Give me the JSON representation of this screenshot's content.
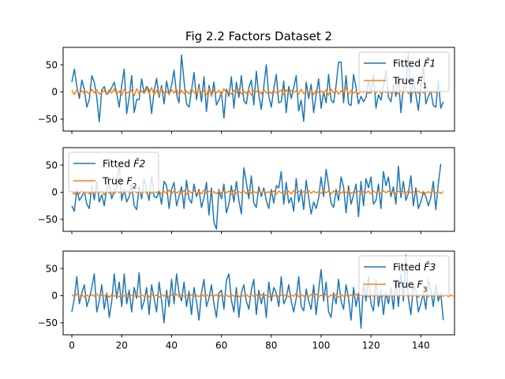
{
  "chart_data": {
    "type": "line",
    "title": "Fig 2.2 Factors Dataset 2",
    "xlim": [
      -3.5,
      153.5
    ],
    "x_ticks": [
      0,
      20,
      40,
      60,
      80,
      100,
      120,
      140
    ],
    "x_tick_labels": [
      "0",
      "20",
      "40",
      "60",
      "80",
      "100",
      "120",
      "140"
    ],
    "colors": {
      "fitted": "#1f77b4",
      "true": "#ff7f0e"
    },
    "panels": [
      {
        "ylim": [
          -72,
          82
        ],
        "y_ticks": [
          -50,
          0,
          50
        ],
        "y_tick_labels": [
          "−50",
          "0",
          "50"
        ],
        "legend_placement": "upper right",
        "legend": [
          {
            "label_plain": "Fitted ",
            "label_math": "F̂1"
          },
          {
            "label_plain": "True ",
            "label_math": "F",
            "label_sub": "1"
          }
        ],
        "series": [
          {
            "name": "Fitted F̂1",
            "values": [
              18,
              42,
              10,
              -12,
              22,
              5,
              -28,
              -14,
              30,
              18,
              -10,
              -55,
              4,
              10,
              -5,
              0,
              8,
              18,
              -3,
              -28,
              12,
              42,
              -40,
              -10,
              30,
              -38,
              -14,
              -14,
              24,
              -2,
              10,
              4,
              -40,
              2,
              25,
              -10,
              12,
              -22,
              20,
              -5,
              12,
              40,
              -5,
              -20,
              68,
              20,
              -22,
              -28,
              2,
              36,
              -14,
              14,
              -18,
              28,
              -36,
              12,
              -8,
              18,
              -24,
              -15,
              0,
              -48,
              5,
              -8,
              28,
              -30,
              18,
              -10,
              30,
              -16,
              -22,
              8,
              22,
              -24,
              38,
              -6,
              -32,
              10,
              50,
              -8,
              -28,
              6,
              32,
              -20,
              -18,
              20,
              -38,
              10,
              -12,
              8,
              30,
              -35,
              -15,
              -54,
              18,
              -12,
              14,
              -38,
              -5,
              24,
              -30,
              0,
              -20,
              32,
              -15,
              -20,
              12,
              55,
              55,
              -20,
              30,
              -22,
              -25,
              32,
              8,
              -22,
              -8,
              -18,
              -10,
              20,
              -2,
              32,
              -30,
              -5,
              -15,
              10,
              40,
              -10,
              -18,
              14,
              -8,
              28,
              -38,
              10,
              8,
              72,
              -20,
              28,
              -5,
              -34,
              12,
              48,
              -22,
              -8,
              2,
              -25,
              -28,
              20,
              -30,
              -18
            ]
          },
          {
            "name": "True F1",
            "values": [
              3,
              -5,
              4,
              -3,
              2,
              -3,
              1,
              -4,
              5,
              -2,
              4,
              -4,
              -1,
              3,
              -5,
              4,
              -2,
              6,
              -4,
              2,
              -6,
              5,
              -2,
              0,
              3,
              -7,
              6,
              -4,
              2,
              -3,
              6,
              -3,
              8,
              -5,
              3,
              -6,
              7,
              -2,
              1,
              -4,
              4,
              -2,
              5,
              -6,
              3,
              -3,
              2,
              -4,
              6,
              -1,
              -4,
              8,
              -3,
              2,
              -5,
              6,
              -7,
              4,
              -2,
              3,
              -5,
              6,
              -2,
              1,
              -4,
              3,
              -1,
              5,
              -4,
              2,
              -3,
              4,
              -6,
              2,
              0,
              3,
              -4,
              5,
              -2,
              1,
              -3,
              4,
              -2,
              0,
              3,
              -5,
              4,
              -2,
              3,
              -1,
              2,
              -4,
              5,
              -3,
              1,
              -2,
              4,
              -5,
              3,
              -1,
              2,
              -3,
              4,
              -6,
              5,
              -2,
              3,
              -4,
              2,
              -1,
              8,
              -5,
              3,
              -2,
              1,
              -4,
              2,
              -1,
              3,
              -3,
              2,
              1,
              -2,
              4,
              -3,
              1,
              -1,
              3,
              -2,
              0,
              2,
              -4,
              3,
              -2,
              5,
              -3,
              1,
              -1,
              2,
              -3,
              4,
              -2,
              0,
              3,
              -2,
              1,
              -1,
              2
            ]
          }
        ]
      },
      {
        "ylim": [
          -72,
          82
        ],
        "y_ticks": [
          -50,
          0,
          50
        ],
        "y_tick_labels": [
          "−50",
          "0",
          "50"
        ],
        "legend_placement": "upper left",
        "legend": [
          {
            "label_plain": "Fitted ",
            "label_math": "F̂2"
          },
          {
            "label_plain": "True ",
            "label_math": "F",
            "label_sub": "2"
          }
        ],
        "series": [
          {
            "name": "Fitted F̂2",
            "values": [
              -25,
              -35,
              5,
              -15,
              -8,
              2,
              -22,
              -30,
              12,
              -14,
              20,
              -18,
              -5,
              -25,
              8,
              15,
              -12,
              2,
              10,
              55,
              -15,
              5,
              -18,
              -8,
              15,
              -25,
              -32,
              12,
              -12,
              25,
              5,
              -15,
              30,
              -8,
              -10,
              2,
              -22,
              20,
              12,
              -30,
              5,
              18,
              -25,
              -8,
              10,
              -30,
              22,
              -12,
              -20,
              15,
              -8,
              5,
              -28,
              -10,
              18,
              -42,
              8,
              -55,
              -68,
              5,
              -12,
              15,
              -38,
              -22,
              12,
              -18,
              20,
              -15,
              -40,
              45,
              18,
              -12,
              30,
              -20,
              -28,
              10,
              -8,
              8,
              -15,
              -30,
              5,
              -20,
              12,
              8,
              38,
              -22,
              18,
              -20,
              -10,
              -35,
              25,
              -18,
              5,
              -32,
              22,
              -10,
              -40,
              -18,
              -30,
              -10,
              28,
              -8,
              42,
              12,
              -20,
              -28,
              5,
              -15,
              28,
              10,
              -38,
              12,
              -22,
              -5,
              15,
              -45,
              20,
              -25,
              25,
              8,
              28,
              -22,
              -15,
              15,
              -30,
              38,
              12,
              28,
              -8,
              10,
              -22,
              48,
              -10,
              20,
              -15,
              -2,
              30,
              -25,
              8,
              -30,
              -18,
              0,
              -8,
              -25,
              -10,
              20,
              -32,
              15,
              52
            ]
          },
          {
            "name": "True F2",
            "values": [
              3,
              -4,
              2,
              -3,
              4,
              -2,
              1,
              -3,
              5,
              -4,
              2,
              -1,
              3,
              -5,
              4,
              -2,
              1,
              -3,
              2,
              -1,
              4,
              -3,
              2,
              0,
              -2,
              3,
              -1,
              2,
              -4,
              3,
              -2,
              1,
              -2,
              3,
              -1,
              2,
              -3,
              1,
              -2,
              4,
              -3,
              2,
              -1,
              1,
              -2,
              3,
              -4,
              2,
              -1,
              3,
              -2,
              1,
              -3,
              4,
              -2,
              2,
              -1,
              1,
              -3,
              2,
              -2,
              3,
              -1,
              2,
              -4,
              3,
              -2,
              1,
              -1,
              2,
              -3,
              4,
              -2,
              1,
              -1,
              2,
              -2,
              3,
              -1,
              1,
              -2,
              3,
              -4,
              2,
              -1,
              1,
              -2,
              2,
              -3,
              3,
              -1,
              2,
              -2,
              1,
              -1,
              3,
              -2,
              2,
              -1,
              1,
              -2,
              3,
              -1,
              2,
              -3,
              2,
              -1,
              1,
              -2,
              2,
              -1,
              3,
              -2,
              1,
              -1,
              2,
              -2,
              1,
              -1,
              2,
              -3,
              2,
              -1,
              1,
              -2,
              3,
              -1,
              2,
              -1,
              1,
              -2,
              2,
              -1,
              1,
              -2,
              3,
              -1,
              1,
              -2,
              2,
              -1,
              1,
              -2,
              1,
              -1,
              2,
              -1,
              1,
              -2,
              1
            ]
          }
        ]
      },
      {
        "ylim": [
          -72,
          82
        ],
        "y_ticks": [
          -50,
          0,
          50
        ],
        "y_tick_labels": [
          "−50",
          "0",
          "50"
        ],
        "legend_placement": "upper right",
        "legend": [
          {
            "label_plain": "Fitted ",
            "label_math": "F̂3"
          },
          {
            "label_plain": "True ",
            "label_math": "F",
            "label_sub": "3"
          }
        ],
        "series": [
          {
            "name": "Fitted F̂3",
            "values": [
              -30,
              -5,
              35,
              -15,
              5,
              20,
              -20,
              -5,
              15,
              40,
              -30,
              -10,
              20,
              -25,
              5,
              -40,
              -10,
              40,
              -5,
              25,
              -20,
              40,
              -15,
              10,
              -30,
              15,
              -5,
              42,
              -25,
              -10,
              15,
              -35,
              20,
              -5,
              -30,
              25,
              -10,
              -50,
              10,
              -20,
              30,
              -15,
              40,
              5,
              -10,
              25,
              -20,
              8,
              -35,
              15,
              -10,
              -45,
              5,
              30,
              -20,
              -5,
              20,
              -15,
              -40,
              5,
              10,
              -25,
              28,
              40,
              -8,
              -30,
              15,
              -40,
              5,
              20,
              -10,
              -25,
              10,
              30,
              -35,
              10,
              -15,
              5,
              -40,
              25,
              -10,
              15,
              5,
              -20,
              35,
              -15,
              -5,
              20,
              -10,
              -30,
              -5,
              35,
              -20,
              -28,
              12,
              -10,
              -25,
              20,
              -35,
              10,
              48,
              -10,
              25,
              -30,
              -40,
              5,
              -15,
              30,
              -10,
              -25,
              20,
              -5,
              -45,
              15,
              -20,
              5,
              -60,
              25,
              -10,
              35,
              -15,
              -28,
              30,
              -20,
              10,
              -35,
              5,
              -15,
              15,
              -25,
              30,
              -20,
              40,
              -10,
              75,
              -5,
              -35,
              20,
              10,
              -30,
              -15,
              5,
              -25,
              30,
              10,
              -20,
              20,
              -10,
              5,
              -45
            ]
          },
          {
            "name": "True F3",
            "values": [
              2,
              -2,
              3,
              -1,
              2,
              -3,
              1,
              -2,
              2,
              -1,
              3,
              -2,
              1,
              -1,
              2,
              -3,
              2,
              -1,
              1,
              -2,
              2,
              -1,
              3,
              -2,
              1,
              -1,
              2,
              -2,
              1,
              -1,
              3,
              -2,
              2,
              -1,
              1,
              -3,
              2,
              -1,
              2,
              -2,
              1,
              -1,
              3,
              -2,
              2,
              -1,
              1,
              -2,
              2,
              -1,
              1,
              -2,
              3,
              -1,
              2,
              -2,
              1,
              -1,
              2,
              -3,
              2,
              -1,
              1,
              -2,
              2,
              -1,
              3,
              -2,
              1,
              -1,
              2,
              -2,
              1,
              -1,
              2,
              -3,
              2,
              -1,
              1,
              -2,
              2,
              -1,
              3,
              -2,
              1,
              -1,
              2,
              -2,
              1,
              -1,
              4,
              -2,
              2,
              -1,
              1,
              -2,
              2,
              -1,
              3,
              -2,
              1,
              -1,
              2,
              -2,
              1,
              -1,
              2,
              -3,
              2,
              -1,
              1,
              -2,
              2,
              -1,
              3,
              -2,
              1,
              -1,
              2,
              -2,
              1,
              -1,
              2,
              -3,
              2,
              -1,
              1,
              -2,
              2,
              -1,
              3,
              -2,
              1,
              -1,
              2,
              -2,
              1,
              -1,
              2,
              -3,
              2,
              -1,
              1,
              -2,
              2,
              -1,
              3,
              -2,
              1,
              -1,
              2,
              -2,
              1,
              -1
            ]
          }
        ]
      }
    ]
  }
}
